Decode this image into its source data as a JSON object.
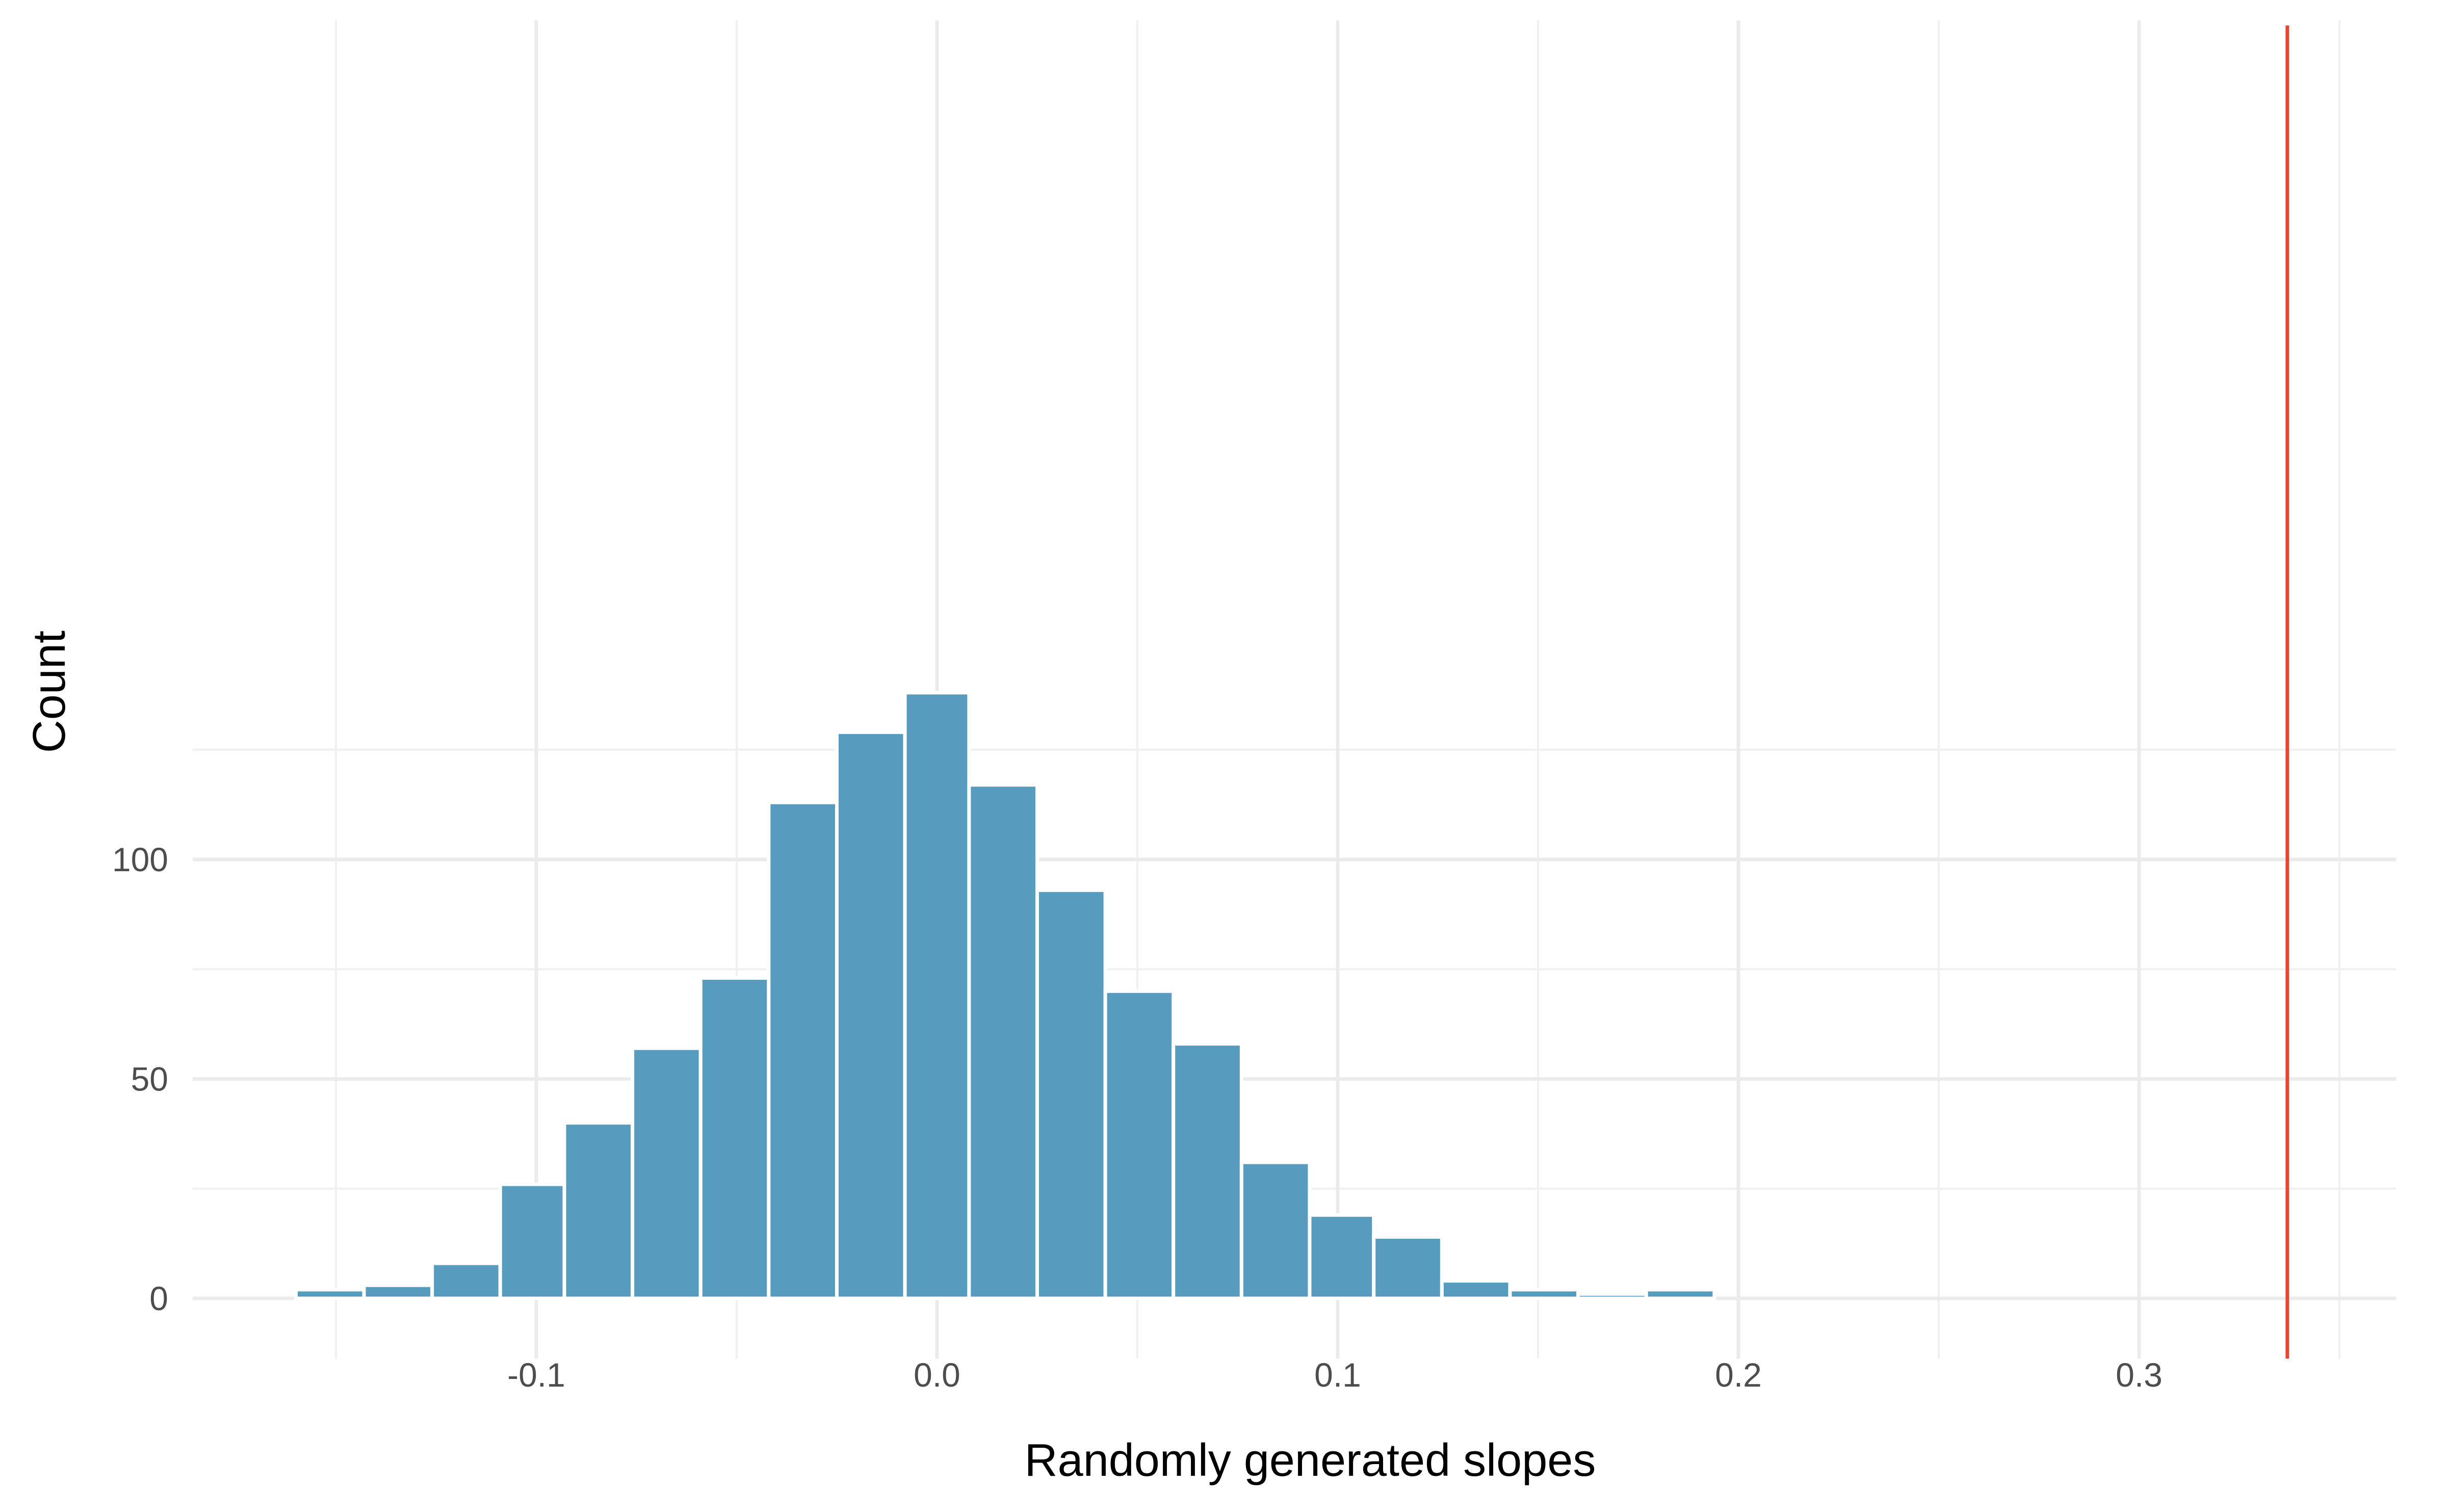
{
  "chart_data": {
    "type": "bar",
    "subtype": "histogram",
    "title": "",
    "xlabel": "Randomly generated slopes",
    "ylabel": "Count",
    "xlim": [
      -0.185,
      0.36
    ],
    "ylim": [
      -6,
      144
    ],
    "x_ticks": [
      {
        "value": -0.1,
        "label": "-0.1"
      },
      {
        "value": 0.0,
        "label": "0.0"
      },
      {
        "value": 0.1,
        "label": "0.1"
      },
      {
        "value": 0.2,
        "label": "0.2"
      },
      {
        "value": 0.3,
        "label": "0.3"
      }
    ],
    "y_ticks": [
      {
        "value": 0,
        "label": "0"
      },
      {
        "value": 50,
        "label": "50"
      },
      {
        "value": 100,
        "label": "100"
      }
    ],
    "x_minor_ticks": [
      -0.15,
      -0.05,
      0.05,
      0.15,
      0.25,
      0.35
    ],
    "y_minor_ticks": [
      25,
      75,
      125
    ],
    "bin_width": 0.0168,
    "bins": [
      {
        "x0": -0.16,
        "x1": -0.143,
        "count": 2
      },
      {
        "x0": -0.143,
        "x1": -0.126,
        "count": 3
      },
      {
        "x0": -0.126,
        "x1": -0.109,
        "count": 8
      },
      {
        "x0": -0.109,
        "x1": -0.093,
        "count": 26
      },
      {
        "x0": -0.093,
        "x1": -0.076,
        "count": 40
      },
      {
        "x0": -0.076,
        "x1": -0.059,
        "count": 57
      },
      {
        "x0": -0.059,
        "x1": -0.042,
        "count": 73
      },
      {
        "x0": -0.042,
        "x1": -0.025,
        "count": 113
      },
      {
        "x0": -0.025,
        "x1": -0.008,
        "count": 129
      },
      {
        "x0": -0.008,
        "x1": 0.008,
        "count": 138
      },
      {
        "x0": 0.008,
        "x1": 0.025,
        "count": 117
      },
      {
        "x0": 0.025,
        "x1": 0.042,
        "count": 93
      },
      {
        "x0": 0.042,
        "x1": 0.059,
        "count": 70
      },
      {
        "x0": 0.059,
        "x1": 0.076,
        "count": 58
      },
      {
        "x0": 0.076,
        "x1": 0.093,
        "count": 31
      },
      {
        "x0": 0.093,
        "x1": 0.109,
        "count": 19
      },
      {
        "x0": 0.109,
        "x1": 0.126,
        "count": 14
      },
      {
        "x0": 0.126,
        "x1": 0.143,
        "count": 4
      },
      {
        "x0": 0.143,
        "x1": 0.16,
        "count": 2
      },
      {
        "x0": 0.16,
        "x1": 0.177,
        "count": 1
      },
      {
        "x0": 0.177,
        "x1": 0.194,
        "count": 2
      },
      {
        "x0": 0.194,
        "x1": 0.211,
        "count": 0
      },
      {
        "x0": 0.211,
        "x1": 0.227,
        "count": 0
      },
      {
        "x0": 0.227,
        "x1": 0.244,
        "count": 0
      },
      {
        "x0": 0.244,
        "x1": 0.261,
        "count": 0
      },
      {
        "x0": 0.261,
        "x1": 0.278,
        "count": 0
      },
      {
        "x0": 0.278,
        "x1": 0.295,
        "count": 0
      },
      {
        "x0": 0.295,
        "x1": 0.311,
        "count": 0
      },
      {
        "x0": 0.311,
        "x1": 0.328,
        "count": 0
      },
      {
        "x0": 0.328,
        "x1": 0.345,
        "count": 0
      }
    ],
    "reference_line": {
      "x": 0.337,
      "color": "#E8472F"
    },
    "bar_color": "#579CBE",
    "bar_outline_color": "#FFFFFF",
    "grid": true,
    "legend": "none"
  }
}
